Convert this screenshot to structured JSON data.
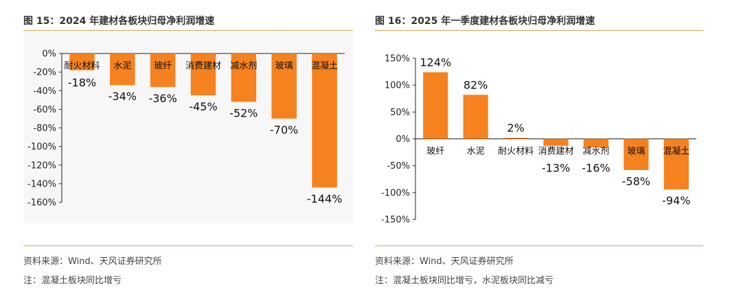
{
  "left": {
    "title": "图 15：2024 年建材各板块归母净利润增速",
    "source": "资料来源：Wind、天风证券研究所",
    "note": "注：混凝土板块同比增亏"
  },
  "right": {
    "title": "图 16：2025 年一季度建材各板块归母净利润增速",
    "source": "资料来源：Wind、天风证券研究所",
    "note": "注：混凝土板块同比增亏，水泥板块同比减亏"
  },
  "colors": {
    "bar": "#f5821f",
    "rule": "#d9a462",
    "plot_bg": "#f7f7f7"
  },
  "chart_data": [
    {
      "type": "bar",
      "categories": [
        "耐火材料",
        "水泥",
        "玻纤",
        "消费建材",
        "减水剂",
        "玻璃",
        "混凝土"
      ],
      "values": [
        -18,
        -34,
        -36,
        -45,
        -52,
        -70,
        -144
      ],
      "data_labels": [
        "-18%",
        "-34%",
        "-36%",
        "-45%",
        "-52%",
        "-70%",
        "-144%"
      ],
      "yticks": [
        "0%",
        "-20%",
        "-40%",
        "-60%",
        "-80%",
        "-100%",
        "-120%",
        "-140%",
        "-160%"
      ],
      "ytick_values": [
        0,
        -20,
        -40,
        -60,
        -80,
        -100,
        -120,
        -140,
        -160
      ],
      "ylim": [
        -160,
        0
      ]
    },
    {
      "type": "bar",
      "categories": [
        "玻纤",
        "水泥",
        "耐火材料",
        "消费建材",
        "减水剂",
        "玻璃",
        "混凝土"
      ],
      "values": [
        124,
        82,
        2,
        -13,
        -16,
        -58,
        -94
      ],
      "data_labels": [
        "124%",
        "82%",
        "2%",
        "-13%",
        "-16%",
        "-58%",
        "-94%"
      ],
      "yticks": [
        "150%",
        "100%",
        "50%",
        "0%",
        "-50%",
        "-100%",
        "-150%"
      ],
      "ytick_values": [
        150,
        100,
        50,
        0,
        -50,
        -100,
        -150
      ],
      "ylim": [
        -150,
        150
      ]
    }
  ]
}
